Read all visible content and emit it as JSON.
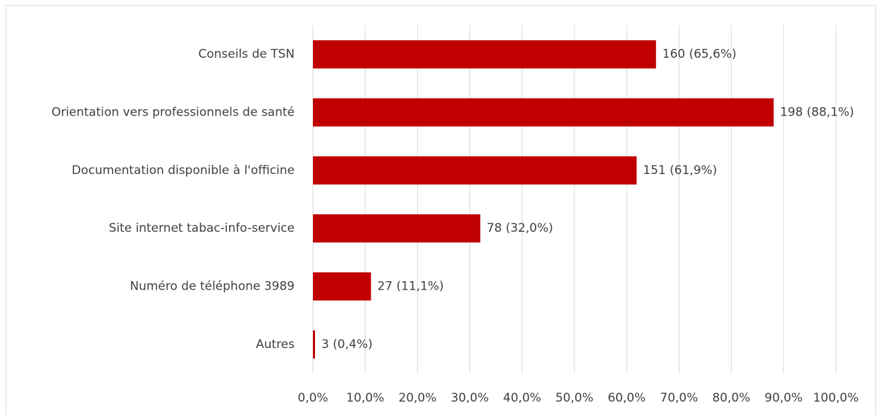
{
  "chart_data": {
    "type": "bar",
    "orientation": "horizontal",
    "categories": [
      "Conseils de TSN",
      "Orientation vers professionnels de santé",
      "Documentation disponible à l'officine",
      "Site internet tabac-info-service",
      "Numéro de téléphone 3989",
      "Autres"
    ],
    "values": [
      65.6,
      88.1,
      61.9,
      32.0,
      11.1,
      0.4
    ],
    "value_labels": [
      "160 (65,6%)",
      "198 (88,1%)",
      "151 (61,9%)",
      "78 (32,0%)",
      "27 (11,1%)",
      "3 (0,4%)"
    ],
    "color": "#c00000",
    "xlim": [
      0,
      100
    ],
    "xticks": [
      {
        "value": 0,
        "label": "0,0%"
      },
      {
        "value": 10,
        "label": "10,0%"
      },
      {
        "value": 20,
        "label": "20,0%"
      },
      {
        "value": 30,
        "label": "30,0%"
      },
      {
        "value": 40,
        "label": "40,0%"
      },
      {
        "value": 50,
        "label": "50,0%"
      },
      {
        "value": 60,
        "label": "60,0%"
      },
      {
        "value": 70,
        "label": "70,0%"
      },
      {
        "value": 80,
        "label": "80,0%"
      },
      {
        "value": 90,
        "label": "90,0%"
      },
      {
        "value": 100,
        "label": "100,0%"
      }
    ],
    "grid": true
  }
}
